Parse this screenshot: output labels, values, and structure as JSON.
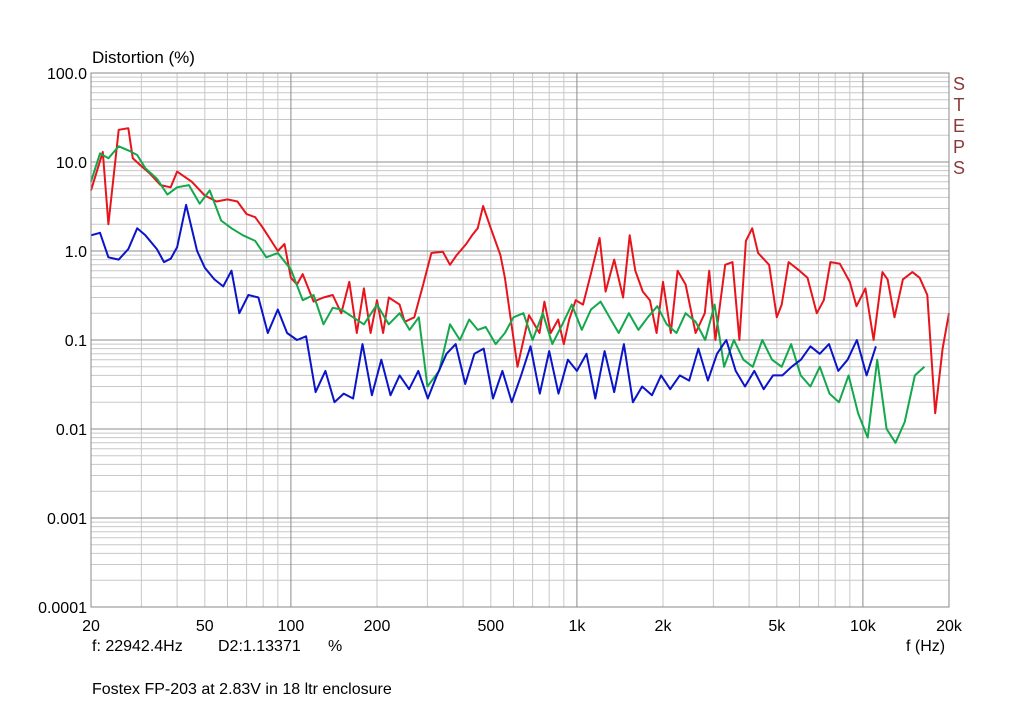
{
  "chart_data": {
    "type": "line",
    "ylabel": "Distortion (%)",
    "xlabel": "f (Hz)",
    "x_scale": "log",
    "y_scale": "log",
    "xlim": [
      20,
      20000
    ],
    "ylim": [
      0.0001,
      100
    ],
    "grid": true,
    "x_ticks": [
      {
        "v": 20,
        "label": "20"
      },
      {
        "v": 50,
        "label": "50"
      },
      {
        "v": 100,
        "label": "100"
      },
      {
        "v": 200,
        "label": "200"
      },
      {
        "v": 500,
        "label": "500"
      },
      {
        "v": 1000,
        "label": "1k"
      },
      {
        "v": 2000,
        "label": "2k"
      },
      {
        "v": 5000,
        "label": "5k"
      },
      {
        "v": 10000,
        "label": "10k"
      },
      {
        "v": 20000,
        "label": "20k"
      }
    ],
    "y_ticks": [
      {
        "v": 100,
        "label": "100.0"
      },
      {
        "v": 10,
        "label": "10.0"
      },
      {
        "v": 1,
        "label": "1.0"
      },
      {
        "v": 0.1,
        "label": "0.1"
      },
      {
        "v": 0.01,
        "label": "0.01"
      },
      {
        "v": 0.001,
        "label": "0.001"
      },
      {
        "v": 0.0001,
        "label": "0.0001"
      }
    ],
    "series": [
      {
        "color": "#e8141c",
        "x": [
          20,
          22,
          23,
          25,
          27,
          28,
          30,
          32,
          35,
          38,
          40,
          45,
          50,
          55,
          60,
          65,
          70,
          75,
          80,
          90,
          95,
          100,
          105,
          110,
          120,
          130,
          140,
          150,
          160,
          170,
          180,
          190,
          200,
          210,
          220,
          240,
          250,
          270,
          290,
          310,
          340,
          360,
          380,
          410,
          430,
          450,
          470,
          500,
          540,
          560,
          620,
          680,
          740,
          770,
          810,
          860,
          900,
          940,
          990,
          1050,
          1120,
          1200,
          1260,
          1350,
          1450,
          1530,
          1600,
          1700,
          1800,
          1900,
          2000,
          2130,
          2250,
          2400,
          2600,
          2800,
          2900,
          3050,
          3300,
          3500,
          3700,
          3900,
          4100,
          4300,
          4700,
          5000,
          5200,
          5500,
          6000,
          6400,
          6900,
          7300,
          7700,
          8300,
          9000,
          9500,
          10200,
          10900,
          11700,
          12200,
          12900,
          13800,
          14900,
          15800,
          16800,
          17900,
          19000,
          20000
        ],
        "values": [
          4.8,
          13,
          2,
          23,
          24,
          11,
          9,
          7.5,
          5.5,
          5.2,
          7.8,
          6,
          4.2,
          3.6,
          3.8,
          3.6,
          2.6,
          2.4,
          1.8,
          1.0,
          1.2,
          0.5,
          0.42,
          0.55,
          0.27,
          0.3,
          0.32,
          0.2,
          0.45,
          0.12,
          0.38,
          0.12,
          0.28,
          0.12,
          0.3,
          0.25,
          0.16,
          0.18,
          0.42,
          0.95,
          0.98,
          0.7,
          0.9,
          1.2,
          1.5,
          1.8,
          3.2,
          1.8,
          0.9,
          0.5,
          0.05,
          0.19,
          0.12,
          0.27,
          0.12,
          0.17,
          0.09,
          0.17,
          0.28,
          0.25,
          0.56,
          1.4,
          0.35,
          0.8,
          0.3,
          1.5,
          0.6,
          0.35,
          0.28,
          0.12,
          0.45,
          0.12,
          0.6,
          0.42,
          0.12,
          0.2,
          0.6,
          0.1,
          0.7,
          0.75,
          0.1,
          1.3,
          1.8,
          0.95,
          0.7,
          0.18,
          0.25,
          0.75,
          0.6,
          0.5,
          0.2,
          0.28,
          0.75,
          0.72,
          0.45,
          0.24,
          0.38,
          0.1,
          0.58,
          0.48,
          0.18,
          0.48,
          0.58,
          0.5,
          0.32,
          0.015,
          0.08,
          0.2
        ]
      },
      {
        "color": "#14a84c",
        "x": [
          20,
          21.5,
          23,
          25,
          27,
          29,
          31,
          34,
          37,
          40,
          44,
          48,
          52,
          57,
          62,
          68,
          75,
          82,
          90,
          100,
          110,
          120,
          130,
          140,
          150,
          165,
          180,
          200,
          220,
          240,
          260,
          280,
          300,
          330,
          360,
          390,
          420,
          450,
          480,
          520,
          560,
          600,
          650,
          700,
          760,
          820,
          890,
          960,
          1040,
          1120,
          1210,
          1300,
          1400,
          1520,
          1640,
          1770,
          1910,
          2060,
          2230,
          2400,
          2600,
          2810,
          3030,
          3270,
          3540,
          3820,
          4120,
          4450,
          4810,
          5200,
          5610,
          6060,
          6550,
          7070,
          7640,
          8250,
          8910,
          9620,
          10390,
          11220,
          12100,
          13000,
          14000,
          15200,
          16400
        ],
        "values": [
          6,
          12.5,
          11,
          15,
          13.5,
          12,
          8.5,
          6.5,
          4.3,
          5.2,
          5.5,
          3.4,
          4.8,
          2.2,
          1.8,
          1.5,
          1.3,
          0.85,
          0.95,
          0.62,
          0.28,
          0.32,
          0.15,
          0.23,
          0.22,
          0.18,
          0.15,
          0.25,
          0.15,
          0.2,
          0.13,
          0.18,
          0.03,
          0.045,
          0.15,
          0.1,
          0.17,
          0.13,
          0.14,
          0.09,
          0.12,
          0.18,
          0.2,
          0.1,
          0.2,
          0.09,
          0.15,
          0.25,
          0.13,
          0.22,
          0.27,
          0.18,
          0.12,
          0.2,
          0.13,
          0.18,
          0.24,
          0.15,
          0.12,
          0.2,
          0.16,
          0.1,
          0.25,
          0.05,
          0.1,
          0.06,
          0.05,
          0.1,
          0.06,
          0.05,
          0.09,
          0.04,
          0.03,
          0.05,
          0.025,
          0.02,
          0.04,
          0.015,
          0.008,
          0.06,
          0.01,
          0.007,
          0.012,
          0.04,
          0.05
        ]
      },
      {
        "color": "#0a14c8",
        "x": [
          20,
          21.5,
          23,
          25,
          27,
          29,
          31,
          34,
          36,
          38,
          40,
          43,
          47,
          50,
          54,
          58,
          62,
          66,
          71,
          77,
          83,
          90,
          97,
          105,
          113,
          122,
          132,
          142,
          153,
          165,
          178,
          192,
          207,
          223,
          240,
          259,
          279,
          301,
          324,
          350,
          377,
          407,
          438,
          472,
          509,
          549,
          592,
          638,
          688,
          742,
          800,
          862,
          930,
          1000,
          1080,
          1160,
          1250,
          1350,
          1460,
          1570,
          1690,
          1830,
          1970,
          2120,
          2290,
          2470,
          2660,
          2870,
          3090,
          3330,
          3590,
          3870,
          4170,
          4500,
          4850,
          5230,
          5630,
          6070,
          6550,
          7060,
          7610,
          8200,
          8840,
          9530,
          10300,
          11100
        ],
        "values": [
          1.5,
          1.6,
          0.85,
          0.8,
          1.05,
          1.8,
          1.5,
          1.05,
          0.75,
          0.82,
          1.1,
          3.3,
          1.0,
          0.65,
          0.48,
          0.4,
          0.6,
          0.2,
          0.32,
          0.3,
          0.12,
          0.22,
          0.12,
          0.1,
          0.11,
          0.026,
          0.045,
          0.02,
          0.025,
          0.022,
          0.09,
          0.024,
          0.06,
          0.024,
          0.04,
          0.028,
          0.045,
          0.022,
          0.04,
          0.07,
          0.09,
          0.032,
          0.07,
          0.08,
          0.022,
          0.045,
          0.02,
          0.04,
          0.085,
          0.025,
          0.075,
          0.025,
          0.06,
          0.045,
          0.07,
          0.022,
          0.075,
          0.026,
          0.09,
          0.02,
          0.03,
          0.024,
          0.04,
          0.028,
          0.04,
          0.035,
          0.08,
          0.035,
          0.07,
          0.1,
          0.045,
          0.03,
          0.045,
          0.028,
          0.04,
          0.04,
          0.05,
          0.06,
          0.085,
          0.07,
          0.09,
          0.045,
          0.06,
          0.1,
          0.04,
          0.085
        ]
      }
    ]
  },
  "status": {
    "freq_readout": "f: 22942.4Hz",
    "d2_readout": "D2:1.13371",
    "unit": "%"
  },
  "caption": "Fostex FP-203 at 2.83V in 18 ltr enclosure",
  "watermark": [
    "S",
    "T",
    "E",
    "P",
    "S"
  ]
}
